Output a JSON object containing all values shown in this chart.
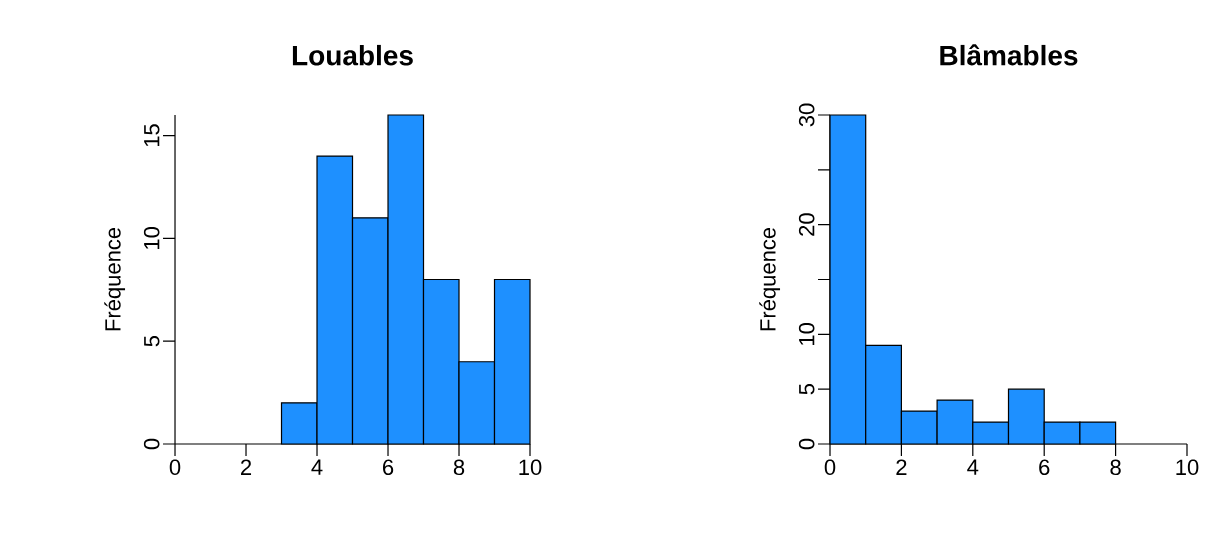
{
  "chart_data": [
    {
      "type": "histogram",
      "title": "Louables",
      "ylabel": "Fréquence",
      "color": "#1e90ff",
      "bins": [
        3,
        4,
        5,
        6,
        7,
        8,
        9,
        10
      ],
      "values": [
        2,
        14,
        11,
        16,
        8,
        4,
        8
      ],
      "xlim": [
        0,
        10
      ],
      "xticks": [
        0,
        2,
        4,
        6,
        8,
        10
      ],
      "ylim": [
        0,
        16
      ],
      "yticks": [
        0,
        5,
        10,
        15
      ]
    },
    {
      "type": "histogram",
      "title": "Blâmables",
      "ylabel": "Fréquence",
      "color": "#1e90ff",
      "bins": [
        0,
        1,
        2,
        3,
        4,
        5,
        6,
        7,
        8
      ],
      "values": [
        30,
        9,
        3,
        4,
        2,
        5,
        2,
        2
      ],
      "xlim": [
        0,
        10
      ],
      "xticks": [
        0,
        2,
        4,
        6,
        8,
        10
      ],
      "ylim": [
        0,
        30
      ],
      "yticks": [
        0,
        5,
        10,
        {
          "value": 15,
          "label": null
        },
        20,
        {
          "value": 25,
          "label": null
        },
        30
      ]
    }
  ]
}
